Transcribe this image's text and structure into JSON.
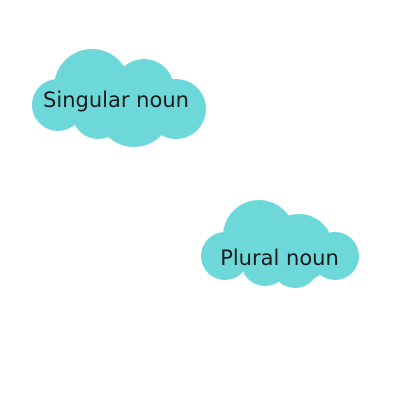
{
  "colors": {
    "cloud_fill": "#6dd8da",
    "text": "#1a1a1a",
    "background": "#ffffff"
  },
  "clouds": [
    {
      "label": "Singular noun"
    },
    {
      "label": "Plural noun"
    }
  ]
}
